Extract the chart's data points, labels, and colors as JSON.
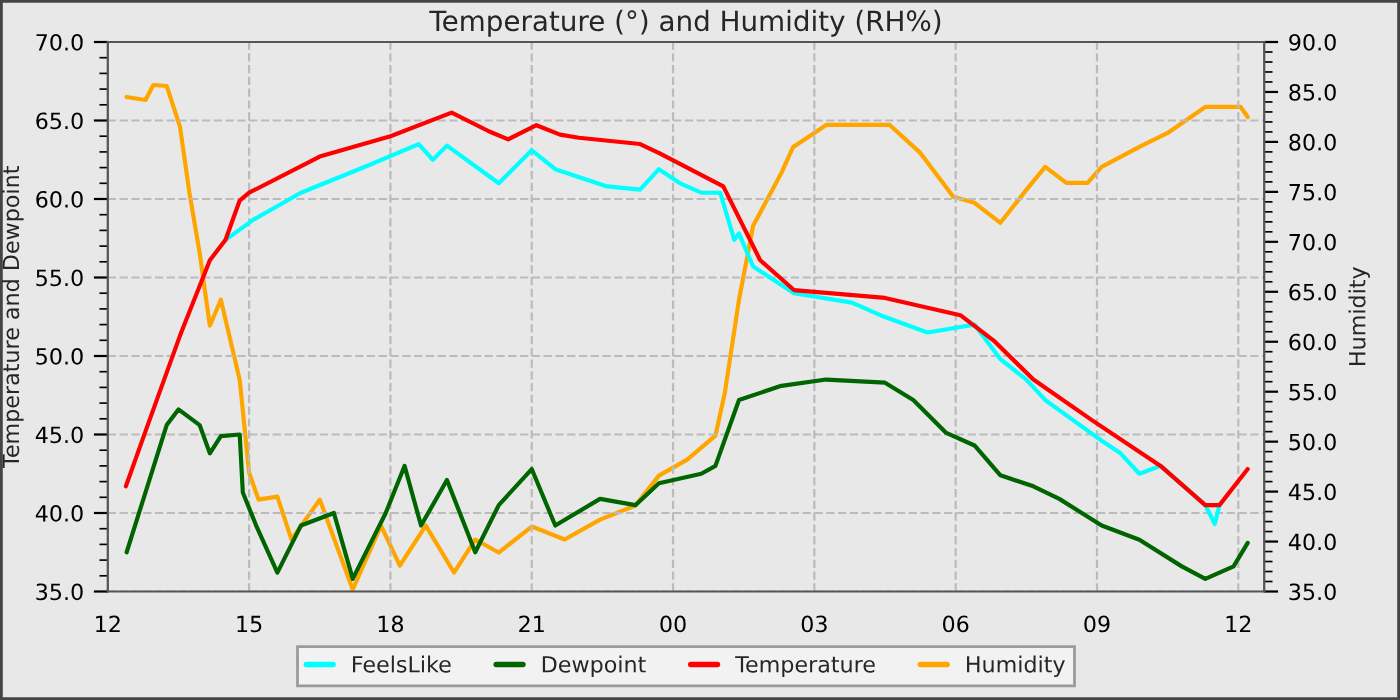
{
  "chart_data": {
    "type": "line",
    "title": "Temperature (°) and Humidity (RH%)",
    "ylabel": "Temperature and Dewpoint",
    "y2label": "Humidity",
    "xlim": [
      "2000-01-01T12:00",
      "2000-01-02T12:33"
    ],
    "xticks": [
      {
        "value": "2000-01-01T12:00",
        "label": "12"
      },
      {
        "value": "2000-01-01T15:00",
        "label": "15"
      },
      {
        "value": "2000-01-01T18:00",
        "label": "18"
      },
      {
        "value": "2000-01-01T21:00",
        "label": "21"
      },
      {
        "value": "2000-01-02T00:00",
        "label": "00"
      },
      {
        "value": "2000-01-02T03:00",
        "label": "03"
      },
      {
        "value": "2000-01-02T06:00",
        "label": "06"
      },
      {
        "value": "2000-01-02T09:00",
        "label": "09"
      },
      {
        "value": "2000-01-02T12:00",
        "label": "12"
      }
    ],
    "ylim": [
      35,
      70
    ],
    "yticks": [
      {
        "value": 35,
        "label": "35.0"
      },
      {
        "value": 40,
        "label": "40.0"
      },
      {
        "value": 45,
        "label": "45.0"
      },
      {
        "value": 50,
        "label": "50.0"
      },
      {
        "value": 55,
        "label": "55.0"
      },
      {
        "value": 60,
        "label": "60.0"
      },
      {
        "value": 65,
        "label": "65.0"
      },
      {
        "value": 70,
        "label": "70.0"
      }
    ],
    "y2lim": [
      35,
      90
    ],
    "y2ticks": [
      {
        "value": 35,
        "label": "35.0"
      },
      {
        "value": 40,
        "label": "40.0"
      },
      {
        "value": 45,
        "label": "45.0"
      },
      {
        "value": 50,
        "label": "50.0"
      },
      {
        "value": 55,
        "label": "55.0"
      },
      {
        "value": 60,
        "label": "60.0"
      },
      {
        "value": 65,
        "label": "65.0"
      },
      {
        "value": 70,
        "label": "70.0"
      },
      {
        "value": 75,
        "label": "75.0"
      },
      {
        "value": 80,
        "label": "80.0"
      },
      {
        "value": 85,
        "label": "85.0"
      },
      {
        "value": 90,
        "label": "90.0"
      }
    ],
    "grid": true,
    "legend": "bottom",
    "line_style": "solid",
    "marker": "none",
    "series": [
      {
        "name": "FeelsLike",
        "color": "#00ffff",
        "x": [
          "2000-01-01T14:30",
          "2000-01-01T15:06",
          "2000-01-01T16:06",
          "2000-01-01T17:30",
          "2000-01-01T18:36",
          "2000-01-01T18:54",
          "2000-01-01T19:12",
          "2000-01-01T20:18",
          "2000-01-01T21:00",
          "2000-01-01T21:30",
          "2000-01-01T22:36",
          "2000-01-01T23:18",
          "2000-01-01T23:42",
          "2000-01-02T00:09",
          "2000-01-02T00:36",
          "2000-01-02T01:00",
          "2000-01-02T01:18",
          "2000-01-02T01:24",
          "2000-01-02T01:42",
          "2000-01-02T02:34",
          "2000-01-02T03:48",
          "2000-01-02T04:24",
          "2000-01-02T05:24",
          "2000-01-02T06:24",
          "2000-01-02T06:57",
          "2000-01-02T07:30",
          "2000-01-02T07:54",
          "2000-01-02T08:30",
          "2000-01-02T09:06",
          "2000-01-02T09:30",
          "2000-01-02T09:54",
          "2000-01-02T10:21",
          "2000-01-02T11:18",
          "2000-01-02T11:30",
          "2000-01-02T11:36"
        ],
        "values": [
          57.4,
          58.7,
          60.4,
          62.1,
          63.5,
          62.5,
          63.4,
          61.0,
          63.1,
          61.9,
          60.8,
          60.6,
          61.9,
          61.0,
          60.4,
          60.4,
          57.4,
          57.8,
          55.7,
          54.0,
          53.4,
          52.6,
          51.5,
          52.0,
          49.8,
          48.5,
          47.2,
          45.9,
          44.6,
          43.8,
          42.5,
          43.0,
          40.5,
          39.3,
          40.5
        ]
      },
      {
        "name": "Dewpoint",
        "color": "#006400",
        "x": [
          "2000-01-01T12:24",
          "2000-01-01T13:15",
          "2000-01-01T13:30",
          "2000-01-01T13:57",
          "2000-01-01T14:10",
          "2000-01-01T14:24",
          "2000-01-01T14:48",
          "2000-01-01T14:52",
          "2000-01-01T15:09",
          "2000-01-01T15:36",
          "2000-01-01T16:06",
          "2000-01-01T16:48",
          "2000-01-01T17:12",
          "2000-01-01T17:54",
          "2000-01-01T18:18",
          "2000-01-01T18:39",
          "2000-01-01T19:12",
          "2000-01-01T19:48",
          "2000-01-01T20:18",
          "2000-01-01T21:00",
          "2000-01-01T21:30",
          "2000-01-01T22:27",
          "2000-01-01T23:12",
          "2000-01-01T23:42",
          "2000-01-02T00:36",
          "2000-01-02T00:54",
          "2000-01-02T01:24",
          "2000-01-02T02:18",
          "2000-01-02T03:15",
          "2000-01-02T04:30",
          "2000-01-02T05:06",
          "2000-01-02T05:48",
          "2000-01-02T06:24",
          "2000-01-02T06:57",
          "2000-01-02T07:39",
          "2000-01-02T08:12",
          "2000-01-02T09:06",
          "2000-01-02T09:54",
          "2000-01-02T10:48",
          "2000-01-02T11:18",
          "2000-01-02T11:54",
          "2000-01-02T12:12"
        ],
        "values": [
          37.5,
          45.6,
          46.6,
          45.6,
          43.8,
          44.9,
          45.0,
          41.3,
          39.2,
          36.2,
          39.2,
          40.0,
          35.8,
          40.0,
          43.0,
          39.2,
          42.1,
          37.5,
          40.5,
          42.8,
          39.2,
          40.9,
          40.5,
          41.9,
          42.5,
          43.0,
          47.2,
          48.1,
          48.5,
          48.3,
          47.2,
          45.1,
          44.3,
          42.4,
          41.7,
          40.9,
          39.2,
          38.3,
          36.6,
          35.8,
          36.6,
          38.1
        ]
      },
      {
        "name": "Temperature",
        "color": "#ff0000",
        "x": [
          "2000-01-01T12:23",
          "2000-01-01T12:53",
          "2000-01-01T13:32",
          "2000-01-01T14:10",
          "2000-01-01T14:30",
          "2000-01-01T14:48",
          "2000-01-01T15:00",
          "2000-01-01T16:30",
          "2000-01-01T18:00",
          "2000-01-01T19:18",
          "2000-01-01T20:06",
          "2000-01-01T20:30",
          "2000-01-01T21:06",
          "2000-01-01T21:36",
          "2000-01-01T22:00",
          "2000-01-01T23:18",
          "2000-01-01T23:43",
          "2000-01-02T01:04",
          "2000-01-02T01:51",
          "2000-01-02T02:34",
          "2000-01-02T04:30",
          "2000-01-02T06:06",
          "2000-01-02T06:48",
          "2000-01-02T07:39",
          "2000-01-02T08:54",
          "2000-01-02T10:21",
          "2000-01-02T11:18",
          "2000-01-02T11:36",
          "2000-01-02T12:12"
        ],
        "values": [
          41.7,
          45.9,
          51.3,
          56.1,
          57.4,
          59.9,
          60.4,
          62.7,
          64.0,
          65.5,
          64.3,
          63.8,
          64.7,
          64.1,
          63.9,
          63.5,
          62.9,
          60.8,
          56.1,
          54.2,
          53.7,
          52.6,
          51.0,
          48.5,
          45.9,
          43.0,
          40.5,
          40.5,
          42.8
        ]
      },
      {
        "name": "Humidity",
        "color": "#ffa500",
        "axis": "y2",
        "x": [
          "2000-01-01T12:24",
          "2000-01-01T12:48",
          "2000-01-01T12:58",
          "2000-01-01T13:15",
          "2000-01-01T13:32",
          "2000-01-01T13:44",
          "2000-01-01T13:57",
          "2000-01-01T14:10",
          "2000-01-01T14:24",
          "2000-01-01T14:36",
          "2000-01-01T14:48",
          "2000-01-01T15:00",
          "2000-01-01T15:12",
          "2000-01-01T15:36",
          "2000-01-01T15:54",
          "2000-01-01T16:30",
          "2000-01-01T17:12",
          "2000-01-01T17:48",
          "2000-01-01T18:12",
          "2000-01-01T18:45",
          "2000-01-01T19:21",
          "2000-01-01T19:48",
          "2000-01-01T20:18",
          "2000-01-01T21:00",
          "2000-01-01T21:42",
          "2000-01-01T22:27",
          "2000-01-01T23:12",
          "2000-01-01T23:42",
          "2000-01-02T00:18",
          "2000-01-02T00:54",
          "2000-01-02T01:06",
          "2000-01-02T01:24",
          "2000-01-02T01:42",
          "2000-01-02T02:18",
          "2000-01-02T02:33",
          "2000-01-02T03:00",
          "2000-01-02T03:15",
          "2000-01-02T04:36",
          "2000-01-02T05:15",
          "2000-01-02T05:57",
          "2000-01-02T06:24",
          "2000-01-02T06:57",
          "2000-01-02T07:30",
          "2000-01-02T07:54",
          "2000-01-02T08:21",
          "2000-01-02T08:48",
          "2000-01-02T09:06",
          "2000-01-02T09:54",
          "2000-01-02T10:30",
          "2000-01-02T11:18",
          "2000-01-02T12:03",
          "2000-01-02T12:12"
        ],
        "values": [
          84.5,
          84.2,
          85.7,
          85.6,
          81.5,
          74.9,
          68.9,
          61.6,
          64.2,
          60.2,
          56.2,
          46.9,
          44.2,
          44.5,
          40.2,
          44.2,
          35.2,
          41.6,
          37.6,
          41.6,
          36.9,
          40.2,
          38.9,
          41.5,
          40.2,
          42.2,
          43.6,
          46.6,
          48.2,
          50.6,
          54.9,
          64.2,
          71.6,
          76.9,
          79.5,
          80.9,
          81.7,
          81.7,
          78.9,
          74.5,
          73.9,
          71.9,
          75.2,
          77.5,
          75.9,
          75.9,
          77.5,
          79.5,
          80.9,
          83.5,
          83.5,
          82.5
        ]
      }
    ]
  }
}
